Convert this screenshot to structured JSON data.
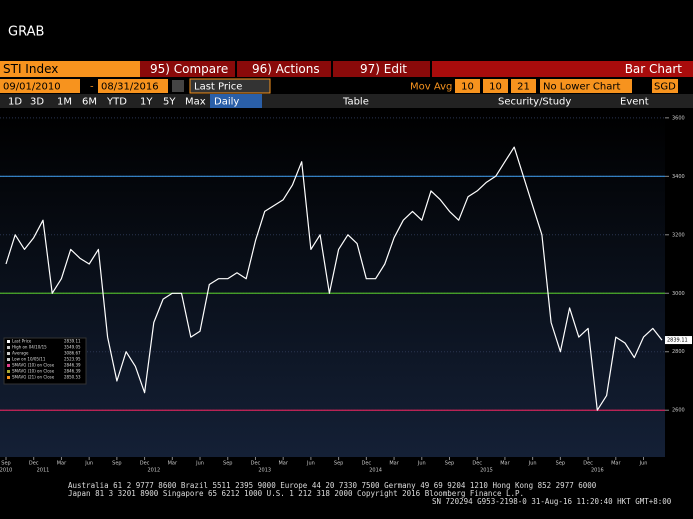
{
  "header": {
    "title": "GRAB"
  },
  "toolbar": {
    "security": "STI Index",
    "compare": "95) Compare",
    "actions": "96) Actions",
    "edit": "97) Edit",
    "chart_type": "Bar Chart",
    "start_date": "09/01/2010",
    "end_date": "08/31/2016",
    "price_field": "Last Price",
    "study": "Mov Avg",
    "ma_periods": [
      "10",
      "10",
      "21"
    ],
    "lower_chart": "No Lower Chart",
    "currency": "SGD",
    "ranges": [
      "1D",
      "3D",
      "1M",
      "6M",
      "YTD",
      "1Y",
      "5Y",
      "Max"
    ],
    "frequency": "Daily",
    "table": "Table",
    "security_study": "Security/Study",
    "event": "Event"
  },
  "chart_data": {
    "type": "line",
    "categories": [
      "Sep",
      null,
      null,
      "Dec",
      null,
      null,
      "Mar",
      null,
      null,
      "Jun",
      null,
      null,
      "Sep",
      null,
      null,
      "Dec",
      null,
      null,
      "Mar",
      null,
      null,
      "Jun",
      null,
      null,
      "Sep",
      null,
      null,
      "Dec",
      null,
      null,
      "Mar",
      null,
      null,
      "Jun",
      null,
      null,
      "Sep",
      null,
      null,
      "Dec",
      null,
      null,
      "Mar",
      null,
      null,
      "Jun",
      null,
      null,
      "Sep",
      null,
      null,
      "Dec",
      null,
      null,
      "Mar",
      null,
      null,
      "Jun",
      null,
      null,
      "Sep",
      null,
      null,
      "Dec",
      null,
      null,
      "Mar",
      null,
      null,
      "Jun",
      null,
      null
    ],
    "years": [
      "2010",
      "2011",
      "2012",
      "2013",
      "2014",
      "2015",
      "2016"
    ],
    "series": [
      {
        "name": "Last Price",
        "color": "#ffffff",
        "values": [
          3100,
          3200,
          3150,
          3190,
          3250,
          3000,
          3050,
          3150,
          3120,
          3100,
          3150,
          2850,
          2700,
          2800,
          2750,
          2660,
          2900,
          2980,
          3000,
          3000,
          2850,
          2870,
          3030,
          3050,
          3050,
          3070,
          3050,
          3180,
          3280,
          3300,
          3320,
          3370,
          3450,
          3150,
          3200,
          3000,
          3150,
          3200,
          3170,
          3050,
          3050,
          3100,
          3190,
          3250,
          3280,
          3250,
          3350,
          3320,
          3280,
          3250,
          3330,
          3350,
          3380,
          3400,
          3450,
          3500,
          3400,
          3300,
          3200,
          2900,
          2800,
          2950,
          2850,
          2880,
          2600,
          2650,
          2850,
          2830,
          2780,
          2850,
          2880,
          2840
        ]
      }
    ],
    "reference_lines": [
      {
        "value": 3400,
        "color": "#3a8fd8"
      },
      {
        "value": 3000,
        "color": "#4caf2a"
      },
      {
        "value": 2600,
        "color": "#d0245a"
      }
    ],
    "ylim": [
      2440,
      3620
    ],
    "yticks": [
      2600,
      2800,
      3000,
      3200,
      3400,
      3600
    ],
    "legend": [
      {
        "label": "High on 04/10/15",
        "value": "3549.05"
      },
      {
        "label": "Average",
        "value": "3086.67"
      },
      {
        "label": "Low on 10/05/11",
        "value": "2523.95"
      },
      {
        "label": "SMAVG (10) on Close",
        "value": "2846.39"
      },
      {
        "label": "SMAVG (10) on Close",
        "value": "2846.39"
      },
      {
        "label": "SMAVG (21) on Close",
        "value": "2850.53"
      }
    ],
    "last_value": "2839.11"
  },
  "footer": {
    "lines": [
      "Australia 61 2 9777 8600 Brazil 5511 2395 9000 Europe 44 20 7330 7500 Germany 49 69 9204 1210 Hong Kong 852 2977 6000",
      "Japan 81 3 3201 8900      Singapore 65 6212 1000      U.S. 1 212 318 2000      Copyright 2016 Bloomberg Finance L.P.",
      "SN 720294 G953-2198-0 31-Aug-16 11:20:40 HKT  GMT+8:00"
    ]
  }
}
